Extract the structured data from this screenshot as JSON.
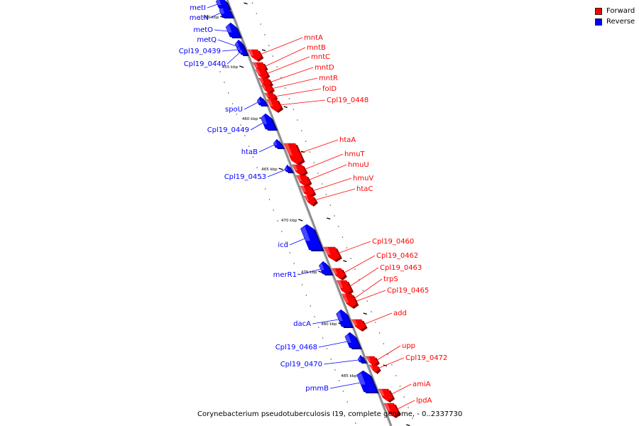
{
  "legend": [
    {
      "label": "Forward",
      "color": "#ff0000"
    },
    {
      "label": "Reverse",
      "color": "#0000ff"
    }
  ],
  "caption": "Corynebacterium pseudotuberculosis I19, complete genome, - 0..2337730",
  "colors": {
    "forward": "#ff0000",
    "reverse": "#0000ff",
    "backbone": "#8c8c8c"
  },
  "ticks": [
    "450 kbp",
    "455 kbp",
    "460 kbp",
    "465 kbp",
    "470 kbp",
    "475 kbp",
    "480 kbp",
    "485 kbp"
  ],
  "genes": [
    {
      "name": "metI",
      "strand": "reverse"
    },
    {
      "name": "metN",
      "strand": "reverse"
    },
    {
      "name": "metO",
      "strand": "reverse"
    },
    {
      "name": "metQ",
      "strand": "reverse"
    },
    {
      "name": "Cpl19_0439",
      "strand": "reverse"
    },
    {
      "name": "Cpl19_0440",
      "strand": "reverse"
    },
    {
      "name": "mntA",
      "strand": "forward"
    },
    {
      "name": "mntB",
      "strand": "forward"
    },
    {
      "name": "mntC",
      "strand": "forward"
    },
    {
      "name": "mntD",
      "strand": "forward"
    },
    {
      "name": "mntR",
      "strand": "forward"
    },
    {
      "name": "folD",
      "strand": "forward"
    },
    {
      "name": "Cpl19_0448",
      "strand": "forward"
    },
    {
      "name": "spoU",
      "strand": "reverse"
    },
    {
      "name": "Cpl19_0449",
      "strand": "reverse"
    },
    {
      "name": "htaB",
      "strand": "reverse"
    },
    {
      "name": "Cpl19_0453",
      "strand": "reverse"
    },
    {
      "name": "htaA",
      "strand": "forward"
    },
    {
      "name": "hmuT",
      "strand": "forward"
    },
    {
      "name": "hmuU",
      "strand": "forward"
    },
    {
      "name": "hmuV",
      "strand": "forward"
    },
    {
      "name": "htaC",
      "strand": "forward"
    },
    {
      "name": "icd",
      "strand": "reverse"
    },
    {
      "name": "merR1",
      "strand": "reverse"
    },
    {
      "name": "Cpl19_0460",
      "strand": "forward"
    },
    {
      "name": "Cpl19_0462",
      "strand": "forward"
    },
    {
      "name": "Cpl19_0463",
      "strand": "forward"
    },
    {
      "name": "trpS",
      "strand": "forward"
    },
    {
      "name": "Cpl19_0465",
      "strand": "forward"
    },
    {
      "name": "add",
      "strand": "forward"
    },
    {
      "name": "dacA",
      "strand": "reverse"
    },
    {
      "name": "Cpl19_0468",
      "strand": "reverse"
    },
    {
      "name": "Cpl19_0470",
      "strand": "reverse"
    },
    {
      "name": "pmmB",
      "strand": "reverse"
    },
    {
      "name": "upp",
      "strand": "forward"
    },
    {
      "name": "Cpl19_0472",
      "strand": "forward"
    },
    {
      "name": "amiA",
      "strand": "forward"
    },
    {
      "name": "lpdA",
      "strand": "forward"
    }
  ]
}
